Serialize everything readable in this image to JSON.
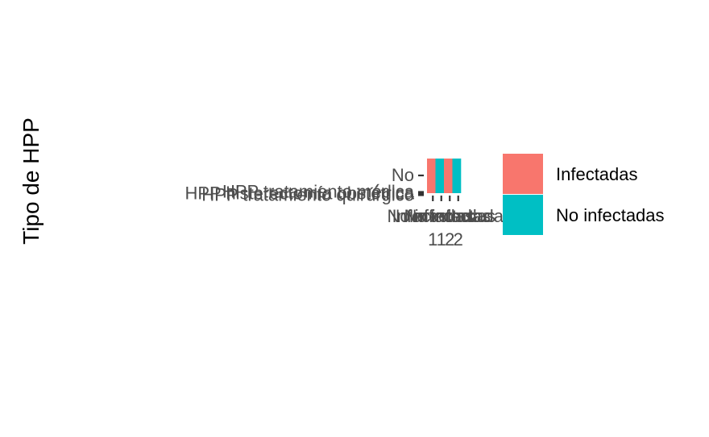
{
  "chart_data": {
    "type": "heatmap",
    "ylabel": "Tipo de HPP",
    "y_categories": [
      "No",
      "HPP tratamiento médica",
      "HPP histerectomía obstétrica",
      "HPP tratamiento quirúrgico"
    ],
    "x_categories": [
      "Infectadas 1",
      "No infectadas 1",
      "Infectadas 2",
      "No infectadas 2"
    ],
    "x_tick_labels_line1": [
      "Infectadas",
      "No infectadas",
      "Infectadas",
      "No infectadas"
    ],
    "x_tick_labels_line2": [
      "1",
      "1",
      "2",
      "2"
    ],
    "x_tick_label_fragments": {
      "line1": [
        "Infectadas",
        "No infectadas",
        "Infectada",
        "No infectada"
      ],
      "line2": [
        "1",
        "1a",
        "2",
        "2a",
        "a",
        "la"
      ]
    },
    "cells": [
      {
        "x": "Infectadas 1",
        "fill": "Infectadas"
      },
      {
        "x": "No infectadas 1",
        "fill": "No infectadas"
      },
      {
        "x": "Infectadas 2",
        "fill": "Infectadas"
      },
      {
        "x": "No infectadas 2",
        "fill": "No infectadas"
      }
    ],
    "legend": {
      "placement": "right",
      "entries": [
        {
          "label": "Infectadas",
          "color": "#F8766D"
        },
        {
          "label": "No infectadas",
          "color": "#00BFC4"
        }
      ]
    },
    "grid": false
  },
  "colors": {
    "infectadas": "#F8766D",
    "no_infectadas": "#00BFC4",
    "axis_text": "#4d4d4d",
    "tick": "#333333"
  }
}
